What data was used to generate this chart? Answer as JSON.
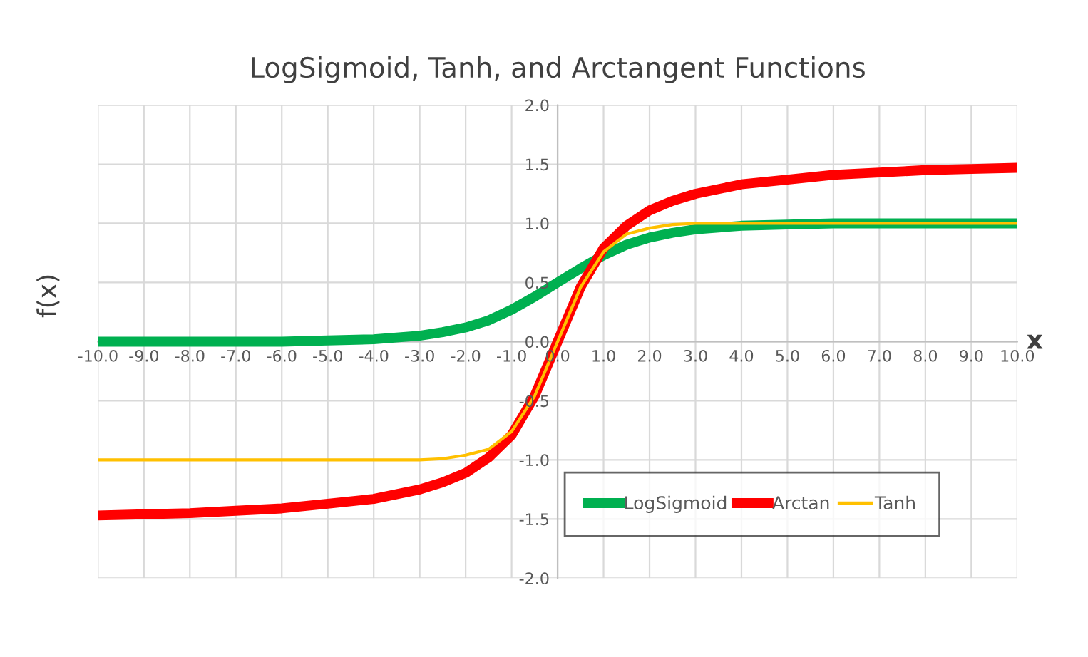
{
  "chart_data": {
    "type": "line",
    "title": "LogSigmoid, Tanh, and Arctangent Functions",
    "xlabel": "x",
    "ylabel": "f(x)",
    "x": [
      -10,
      -9,
      -8,
      -7,
      -6,
      -5,
      -4,
      -3,
      -2.5,
      -2,
      -1.5,
      -1,
      -0.5,
      0,
      0.5,
      1,
      1.5,
      2,
      2.5,
      3,
      4,
      5,
      6,
      7,
      8,
      9,
      10
    ],
    "series": [
      {
        "name": "LogSigmoid",
        "color": "#00b050",
        "values": [
          0.0,
          0.0,
          0.0,
          0.0,
          0.0,
          0.01,
          0.02,
          0.05,
          0.08,
          0.12,
          0.18,
          0.27,
          0.38,
          0.5,
          0.62,
          0.73,
          0.82,
          0.88,
          0.92,
          0.95,
          0.98,
          0.99,
          1.0,
          1.0,
          1.0,
          1.0,
          1.0
        ]
      },
      {
        "name": "Arctan",
        "color": "#ff0000",
        "values": [
          -1.47,
          -1.46,
          -1.45,
          -1.43,
          -1.41,
          -1.37,
          -1.33,
          -1.25,
          -1.19,
          -1.11,
          -0.98,
          -0.79,
          -0.46,
          0.0,
          0.46,
          0.79,
          0.98,
          1.11,
          1.19,
          1.25,
          1.33,
          1.37,
          1.41,
          1.43,
          1.45,
          1.46,
          1.47
        ]
      },
      {
        "name": "Tanh",
        "color": "#ffc000",
        "values": [
          -1.0,
          -1.0,
          -1.0,
          -1.0,
          -1.0,
          -1.0,
          -1.0,
          -1.0,
          -0.99,
          -0.96,
          -0.91,
          -0.76,
          -0.46,
          0.0,
          0.46,
          0.76,
          0.91,
          0.96,
          0.99,
          1.0,
          1.0,
          1.0,
          1.0,
          1.0,
          1.0,
          1.0,
          1.0
        ]
      }
    ],
    "xlim": [
      -10,
      10
    ],
    "xticks": [
      {
        "value": -10,
        "label": "-10.0"
      },
      {
        "value": -9,
        "label": "-9.0"
      },
      {
        "value": -8,
        "label": "-8.0"
      },
      {
        "value": -7,
        "label": "-7.0"
      },
      {
        "value": -6,
        "label": "-6.0"
      },
      {
        "value": -5,
        "label": "-5.0"
      },
      {
        "value": -4,
        "label": "-4.0"
      },
      {
        "value": -3,
        "label": "-3.0"
      },
      {
        "value": -2,
        "label": "-2.0"
      },
      {
        "value": -1,
        "label": "-1.0"
      },
      {
        "value": 0,
        "label": "0.0"
      },
      {
        "value": 1,
        "label": "1.0"
      },
      {
        "value": 2,
        "label": "2.0"
      },
      {
        "value": 3,
        "label": "3.0"
      },
      {
        "value": 4,
        "label": "4.0"
      },
      {
        "value": 5,
        "label": "5.0"
      },
      {
        "value": 6,
        "label": "6.0"
      },
      {
        "value": 7,
        "label": "7.0"
      },
      {
        "value": 8,
        "label": "8.0"
      },
      {
        "value": 9,
        "label": "9.0"
      },
      {
        "value": 10,
        "label": "10.0"
      }
    ],
    "ylim": [
      -2,
      2
    ],
    "yticks": [
      {
        "value": -2,
        "label": "-2.0"
      },
      {
        "value": -1.5,
        "label": "-1.5"
      },
      {
        "value": -1,
        "label": "-1.0"
      },
      {
        "value": -0.5,
        "label": "-0.5"
      },
      {
        "value": 0,
        "label": "0.0"
      },
      {
        "value": 0.5,
        "label": "0.5"
      },
      {
        "value": 1,
        "label": "1.0"
      },
      {
        "value": 1.5,
        "label": "1.5"
      },
      {
        "value": 2,
        "label": "2.0"
      }
    ],
    "grid": true,
    "legend": "bottom right",
    "marker": "none",
    "line_style": "solid"
  }
}
